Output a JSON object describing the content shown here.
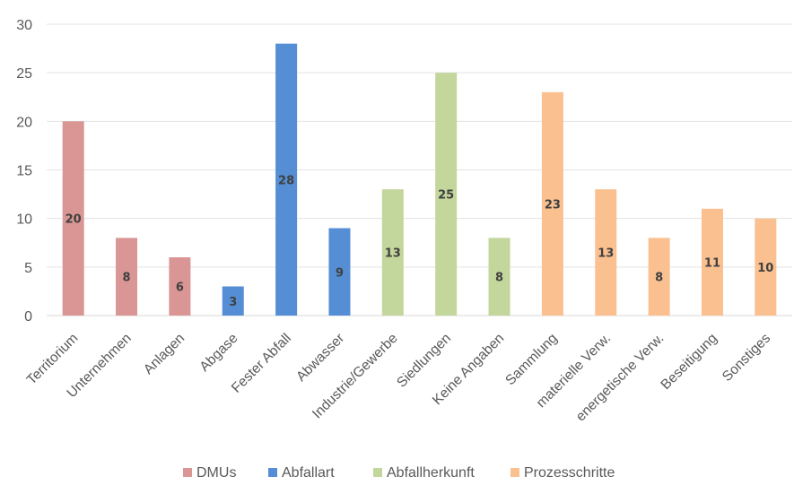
{
  "chart_data": {
    "type": "bar",
    "title": "",
    "xlabel": "",
    "ylabel": "",
    "ylim": [
      0,
      30
    ],
    "yticks": [
      0,
      5,
      10,
      15,
      20,
      25,
      30
    ],
    "grid": true,
    "legend_position": "bottom",
    "categories": [
      "Territorium",
      "Unternehmen",
      "Anlagen",
      "Abgase",
      "Fester Abfall",
      "Abwasser",
      "Industrie/Gewerbe",
      "Siedlungen",
      "Keine Angaben",
      "Sammlung",
      "materielle Verw.",
      "energetische Verw.",
      "Beseitigung",
      "Sonstiges"
    ],
    "values": [
      20,
      8,
      6,
      3,
      28,
      9,
      13,
      25,
      8,
      23,
      13,
      8,
      11,
      10
    ],
    "groups": [
      0,
      0,
      0,
      1,
      1,
      1,
      2,
      2,
      2,
      3,
      3,
      3,
      3,
      3
    ],
    "series": [
      {
        "name": "DMUs",
        "color": "#d99694"
      },
      {
        "name": "Abfallart",
        "color": "#558ed5"
      },
      {
        "name": "Abfallherkunft",
        "color": "#c3d69b"
      },
      {
        "name": "Prozesschritte",
        "color": "#fac090"
      }
    ]
  }
}
